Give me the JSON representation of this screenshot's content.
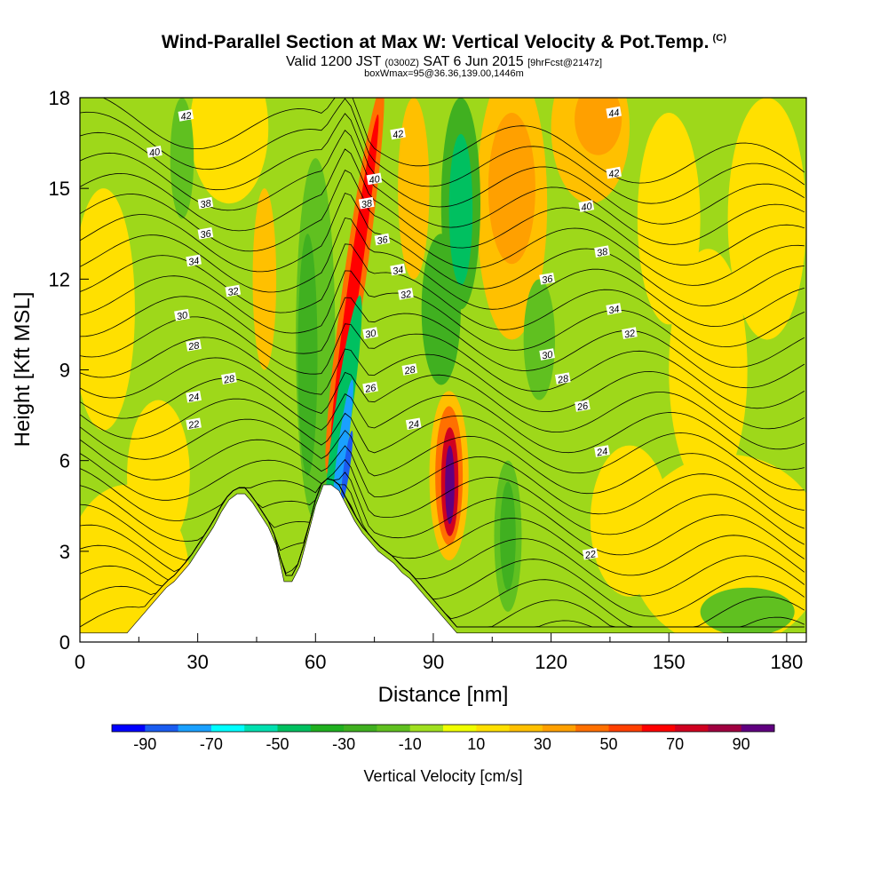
{
  "title": {
    "main": "Wind-Parallel Section at Max W: Vertical Velocity & Pot.Temp.",
    "copyright": "(C)",
    "valid_prefix": "Valid 1200 JST",
    "utc": "(0300Z)",
    "valid_date": "SAT 6 Jun 2015",
    "forecast": "[9hrFcst@2147z]",
    "boxinfo": "boxWmax=95@36.36,139.00,1446m"
  },
  "chart_data": {
    "type": "heatmap",
    "xlabel": "Distance [nm]",
    "ylabel": "Height [Kft MSL]",
    "xlim": [
      0,
      185
    ],
    "ylim": [
      0,
      18
    ],
    "xticks": [
      0,
      30,
      60,
      90,
      120,
      150,
      180
    ],
    "yticks": [
      0,
      3,
      6,
      9,
      12,
      15,
      18
    ],
    "colorbar": {
      "label": "Vertical Velocity [cm/s]",
      "tick_labels": [
        "-90",
        "-70",
        "-50",
        "-30",
        "-10",
        "10",
        "30",
        "50",
        "70",
        "90"
      ],
      "levels": [
        -100,
        -90,
        -80,
        -70,
        -60,
        -50,
        -40,
        -30,
        -20,
        -10,
        0,
        10,
        20,
        30,
        40,
        50,
        60,
        70,
        80,
        90,
        100
      ],
      "colors": [
        "#0000ff",
        "#1a5cf0",
        "#1aa0ff",
        "#00ffff",
        "#00e0b0",
        "#00c060",
        "#20b020",
        "#40b020",
        "#60c020",
        "#a0e020",
        "#f0ff00",
        "#ffe000",
        "#ffc000",
        "#ffa000",
        "#ff7000",
        "#ff4000",
        "#ff0000",
        "#d00020",
        "#a00040",
        "#600080"
      ]
    },
    "vertical_velocity_features": [
      {
        "kind": "updraft",
        "x_center": 94,
        "z_center": 5.5,
        "max_w": 95
      },
      {
        "kind": "updraft",
        "x_center": 69,
        "z_center": 13,
        "max_w": 60
      },
      {
        "kind": "downdraft",
        "x_center": 67,
        "z_center": 7,
        "max_w": -80
      },
      {
        "kind": "downdraft",
        "x_center": 96,
        "z_center": 14,
        "max_w": -50
      },
      {
        "kind": "downdraft",
        "x_center": 109,
        "z_center": 3.5,
        "max_w": -30
      },
      {
        "kind": "updraft",
        "x_center": 110,
        "z_center": 14,
        "max_w": 30
      },
      {
        "kind": "updraft",
        "x_center": 128,
        "z_center": 17,
        "max_w": 30
      }
    ],
    "terrain": {
      "x": [
        0,
        12,
        14,
        16,
        18,
        20,
        22,
        24,
        26,
        28,
        30,
        32,
        34,
        36,
        38,
        40,
        42,
        44,
        46,
        48,
        50,
        52,
        54,
        56,
        58,
        60,
        62,
        64,
        66,
        68,
        70,
        72,
        74,
        76,
        78,
        80,
        82,
        84,
        86,
        88,
        90,
        92,
        94,
        96,
        185
      ],
      "z": [
        0.3,
        0.3,
        0.6,
        0.9,
        1.2,
        1.5,
        1.8,
        2.0,
        2.3,
        2.6,
        3.0,
        3.4,
        3.8,
        4.3,
        4.7,
        4.9,
        4.9,
        4.6,
        4.2,
        3.8,
        3.2,
        2.0,
        2.0,
        2.5,
        3.5,
        4.5,
        5.2,
        5.2,
        5.0,
        4.5,
        4.0,
        3.6,
        3.3,
        3.0,
        2.8,
        2.6,
        2.3,
        2.1,
        1.8,
        1.5,
        1.2,
        0.9,
        0.6,
        0.3,
        0.3
      ]
    },
    "theta_contours": {
      "unit": "C",
      "labels": [
        {
          "v": "42",
          "x": 27,
          "z": 17.4
        },
        {
          "v": "40",
          "x": 19,
          "z": 16.2
        },
        {
          "v": "38",
          "x": 32,
          "z": 14.5
        },
        {
          "v": "36",
          "x": 32,
          "z": 13.5
        },
        {
          "v": "34",
          "x": 29,
          "z": 12.6
        },
        {
          "v": "32",
          "x": 39,
          "z": 11.6
        },
        {
          "v": "30",
          "x": 26,
          "z": 10.8
        },
        {
          "v": "28",
          "x": 29,
          "z": 9.8
        },
        {
          "v": "28",
          "x": 38,
          "z": 8.7
        },
        {
          "v": "24",
          "x": 29,
          "z": 8.1
        },
        {
          "v": "22",
          "x": 29,
          "z": 7.2
        },
        {
          "v": "42",
          "x": 81,
          "z": 16.8
        },
        {
          "v": "40",
          "x": 75,
          "z": 15.3
        },
        {
          "v": "38",
          "x": 73,
          "z": 14.5
        },
        {
          "v": "36",
          "x": 77,
          "z": 13.3
        },
        {
          "v": "34",
          "x": 81,
          "z": 12.3
        },
        {
          "v": "32",
          "x": 83,
          "z": 11.5
        },
        {
          "v": "30",
          "x": 74,
          "z": 10.2
        },
        {
          "v": "28",
          "x": 84,
          "z": 9.0
        },
        {
          "v": "26",
          "x": 74,
          "z": 8.4
        },
        {
          "v": "24",
          "x": 85,
          "z": 7.2
        },
        {
          "v": "44",
          "x": 136,
          "z": 17.5
        },
        {
          "v": "42",
          "x": 136,
          "z": 15.5
        },
        {
          "v": "40",
          "x": 129,
          "z": 14.4
        },
        {
          "v": "38",
          "x": 133,
          "z": 12.9
        },
        {
          "v": "36",
          "x": 119,
          "z": 12.0
        },
        {
          "v": "34",
          "x": 136,
          "z": 11.0
        },
        {
          "v": "32",
          "x": 140,
          "z": 10.2
        },
        {
          "v": "30",
          "x": 119,
          "z": 9.5
        },
        {
          "v": "28",
          "x": 123,
          "z": 8.7
        },
        {
          "v": "26",
          "x": 128,
          "z": 7.8
        },
        {
          "v": "24",
          "x": 133,
          "z": 6.3
        },
        {
          "v": "22",
          "x": 130,
          "z": 2.9
        }
      ]
    }
  }
}
